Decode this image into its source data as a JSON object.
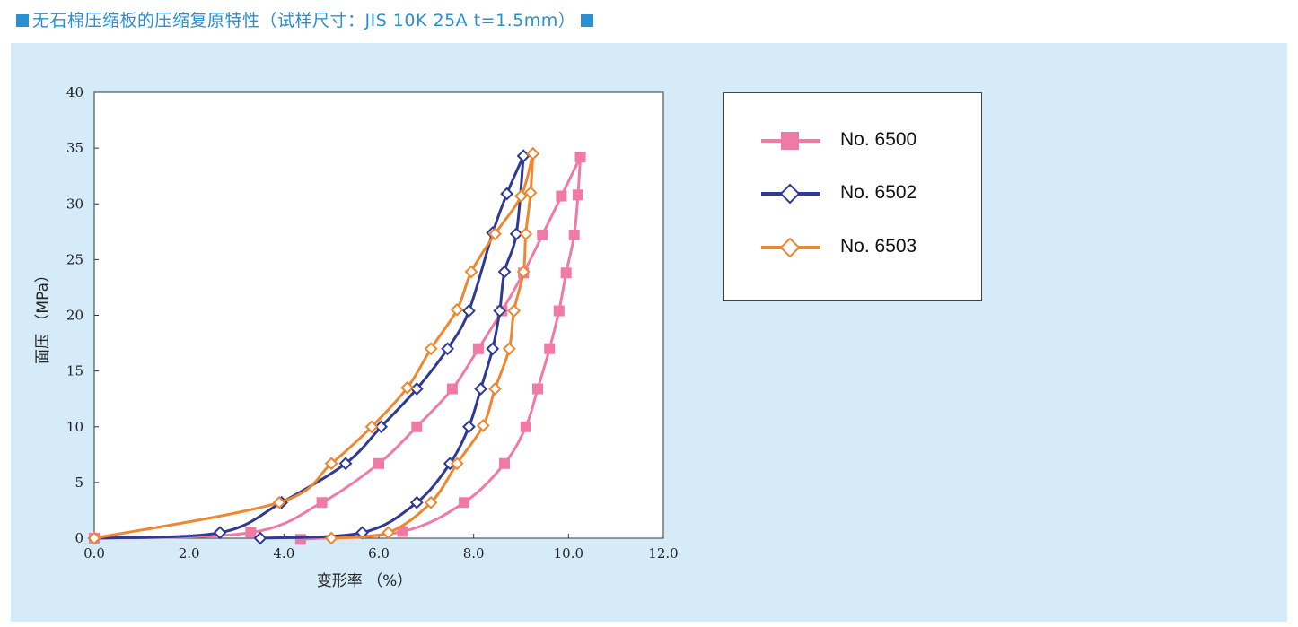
{
  "header": {
    "title": "无石棉压缩板的压缩复原特性（试样尺寸：JIS 10K 25A t=1.5mm）"
  },
  "colors": {
    "accent": "#2a8fd0",
    "panel_bg": "#d6ebf8"
  },
  "chart_data": {
    "type": "line",
    "xlabel": "变形率 （%）",
    "ylabel": "面压 （MPa）",
    "xlim": [
      0,
      12
    ],
    "ylim": [
      0,
      40
    ],
    "x_ticks": [
      "0.0",
      "2.0",
      "4.0",
      "6.0",
      "8.0",
      "10.0",
      "12.0"
    ],
    "y_ticks": [
      "0",
      "5",
      "10",
      "15",
      "20",
      "25",
      "30",
      "35",
      "40"
    ],
    "grid": false,
    "legend_position": "right",
    "series": [
      {
        "name": "No. 6500",
        "color": "#f07aa6",
        "marker": "square-filled",
        "loading": [
          [
            0.0,
            0.0
          ],
          [
            3.3,
            0.5
          ],
          [
            4.8,
            3.2
          ],
          [
            6.0,
            6.7
          ],
          [
            6.8,
            10.0
          ],
          [
            7.55,
            13.4
          ],
          [
            8.1,
            17.0
          ],
          [
            8.6,
            20.4
          ],
          [
            9.05,
            23.8
          ],
          [
            9.45,
            27.2
          ],
          [
            9.85,
            30.7
          ],
          [
            10.25,
            34.2
          ]
        ],
        "unloading": [
          [
            10.25,
            34.2
          ],
          [
            10.2,
            30.8
          ],
          [
            10.12,
            27.2
          ],
          [
            9.95,
            23.8
          ],
          [
            9.8,
            20.4
          ],
          [
            9.6,
            17.0
          ],
          [
            9.35,
            13.4
          ],
          [
            9.1,
            10.0
          ],
          [
            8.65,
            6.7
          ],
          [
            7.8,
            3.2
          ],
          [
            6.5,
            0.6
          ],
          [
            4.35,
            -0.1
          ]
        ]
      },
      {
        "name": "No. 6502",
        "color": "#2e3a93",
        "marker": "diamond-open",
        "loading": [
          [
            0.0,
            0.0
          ],
          [
            2.65,
            0.5
          ],
          [
            3.95,
            3.2
          ],
          [
            5.3,
            6.7
          ],
          [
            6.05,
            10.0
          ],
          [
            6.8,
            13.4
          ],
          [
            7.45,
            17.0
          ],
          [
            7.9,
            20.4
          ],
          [
            8.4,
            27.4
          ],
          [
            8.7,
            30.9
          ],
          [
            9.05,
            34.3
          ]
        ],
        "unloading": [
          [
            9.05,
            34.3
          ],
          [
            8.9,
            27.3
          ],
          [
            8.65,
            23.9
          ],
          [
            8.55,
            20.4
          ],
          [
            8.4,
            17.0
          ],
          [
            8.15,
            13.4
          ],
          [
            7.9,
            10.0
          ],
          [
            7.5,
            6.7
          ],
          [
            6.8,
            3.2
          ],
          [
            5.65,
            0.5
          ],
          [
            3.5,
            0.0
          ]
        ]
      },
      {
        "name": "No. 6503",
        "color": "#ef8630",
        "marker": "diamond-open",
        "loading": [
          [
            0.0,
            0.0
          ],
          [
            3.9,
            3.2
          ],
          [
            5.0,
            6.7
          ],
          [
            5.85,
            10.0
          ],
          [
            6.6,
            13.5
          ],
          [
            7.1,
            17.0
          ],
          [
            7.65,
            20.5
          ],
          [
            7.95,
            23.9
          ],
          [
            8.45,
            27.3
          ],
          [
            9.0,
            30.7
          ],
          [
            9.25,
            34.5
          ]
        ],
        "unloading": [
          [
            9.25,
            34.5
          ],
          [
            9.2,
            31.0
          ],
          [
            9.1,
            27.3
          ],
          [
            9.05,
            23.9
          ],
          [
            8.85,
            20.4
          ],
          [
            8.75,
            17.0
          ],
          [
            8.45,
            13.4
          ],
          [
            8.2,
            10.1
          ],
          [
            7.65,
            6.7
          ],
          [
            7.1,
            3.2
          ],
          [
            6.2,
            0.5
          ],
          [
            5.0,
            0.0
          ]
        ]
      }
    ]
  }
}
